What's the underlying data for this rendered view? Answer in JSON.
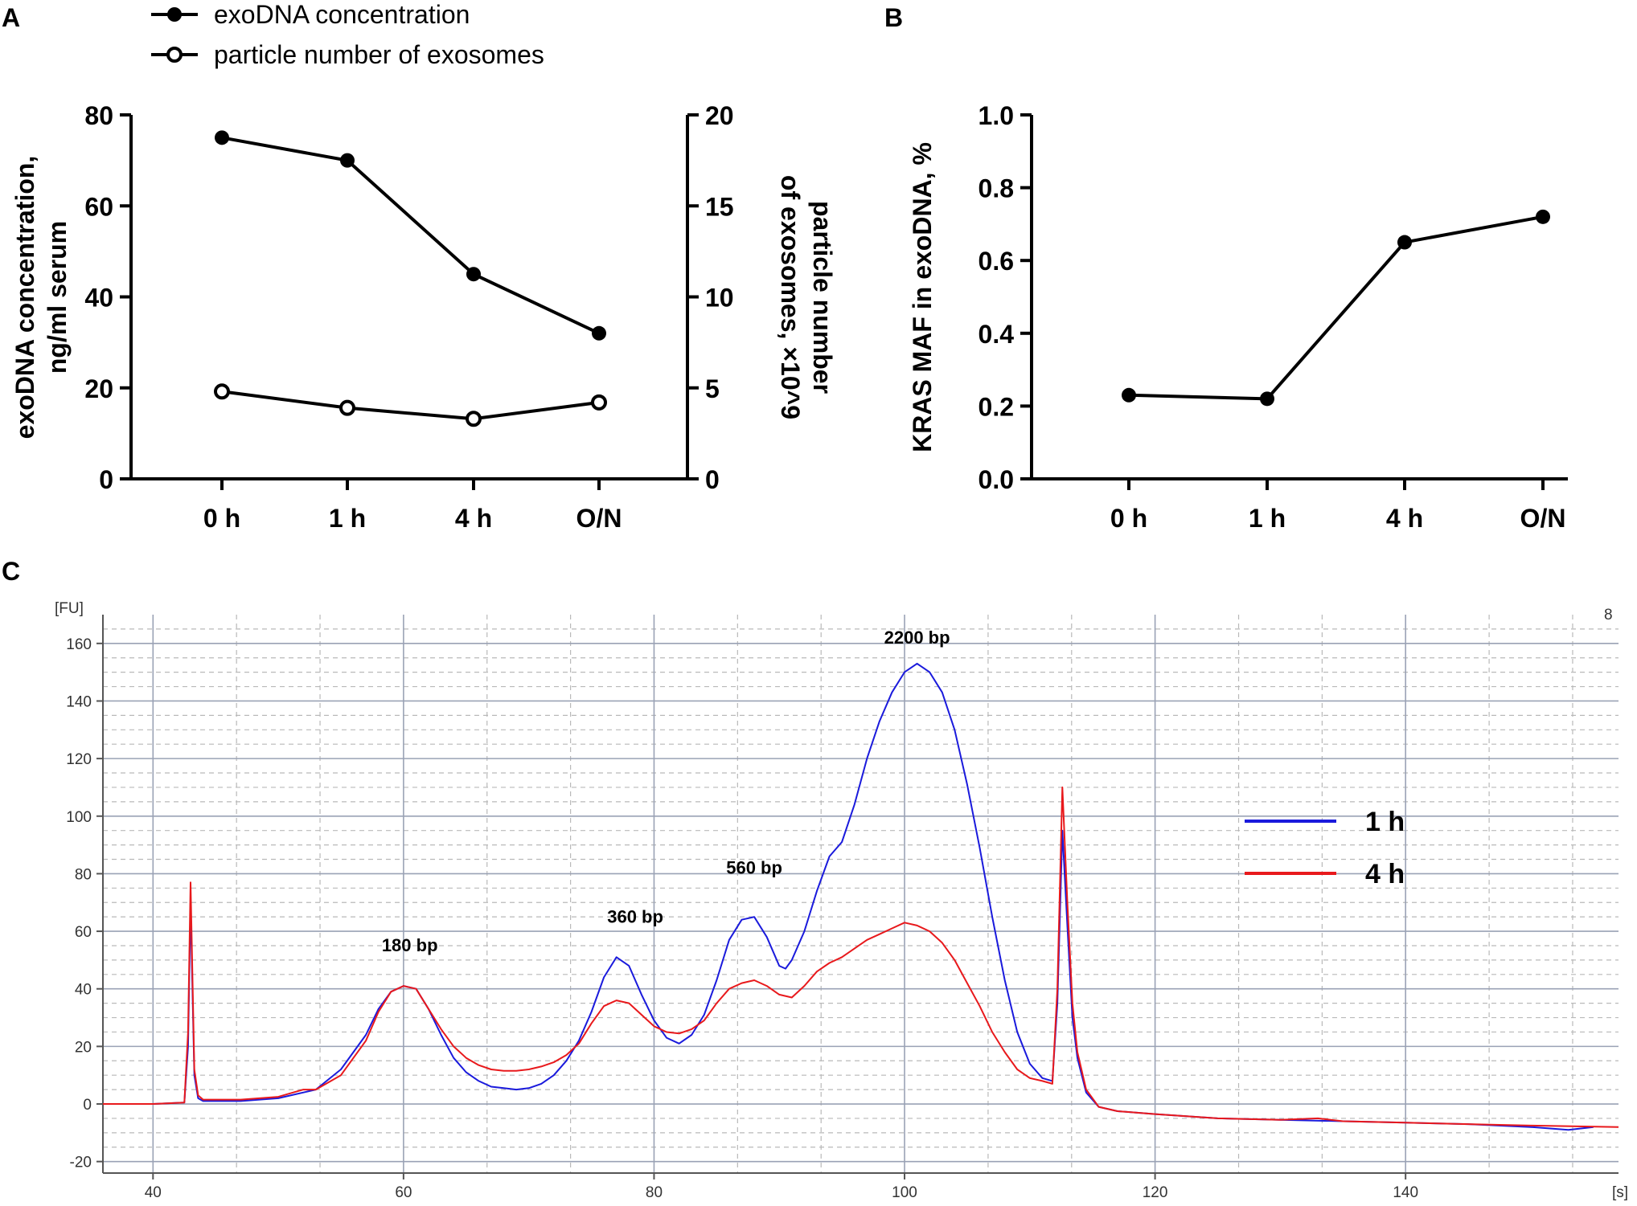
{
  "chart_data": [
    {
      "panel": "A",
      "type": "line",
      "categories": [
        "0 h",
        "1 h",
        "4 h",
        "O/N"
      ],
      "series": [
        {
          "name": "exoDNA concentration",
          "axis": "left",
          "marker": "filled-circle",
          "values": [
            75,
            70,
            45,
            32
          ]
        },
        {
          "name": "particle number of exosomes",
          "axis": "right",
          "marker": "open-circle",
          "values": [
            4.8,
            3.9,
            3.3,
            4.2
          ]
        }
      ],
      "ylabel": "exoDNA concentration, ng/ml serum",
      "ylabel_lines": [
        "exoDNA concentration,",
        "ng/ml serum"
      ],
      "ylim": [
        0,
        80
      ],
      "yticks": [
        "0",
        "20",
        "40",
        "60",
        "80"
      ],
      "y2label": "particle number of exosomes, ×10^9",
      "y2label_lines": [
        "particle number",
        "of exosomes, ×10^9"
      ],
      "y2lim": [
        0,
        20
      ],
      "y2ticks": [
        "0",
        "5",
        "10",
        "15",
        "20"
      ],
      "legend": "top-left"
    },
    {
      "panel": "B",
      "type": "line",
      "categories": [
        "0 h",
        "1 h",
        "4 h",
        "O/N"
      ],
      "series": [
        {
          "name": "KRAS MAF",
          "marker": "filled-circle",
          "values": [
            0.23,
            0.22,
            0.65,
            0.72
          ]
        }
      ],
      "ylabel": "KRAS MAF in exoDNA, %",
      "ylim": [
        0,
        1.0
      ],
      "yticks": [
        "0.0",
        "0.2",
        "0.4",
        "0.6",
        "0.8",
        "1.0"
      ]
    },
    {
      "panel": "C",
      "type": "line",
      "xlabel": "[s]",
      "ylabel": "[FU]",
      "corner_label": "8",
      "xlim": [
        36,
        157
      ],
      "ylim": [
        -24,
        170
      ],
      "xticks": [
        "40",
        "60",
        "80",
        "100",
        "120",
        "140"
      ],
      "yticks": [
        "-20",
        "0",
        "20",
        "40",
        "60",
        "80",
        "100",
        "120",
        "140",
        "160"
      ],
      "grid": true,
      "legend": "right",
      "annotations": [
        {
          "text": "180 bp",
          "x": 60.5,
          "y": 53
        },
        {
          "text": "360 bp",
          "x": 78.5,
          "y": 63
        },
        {
          "text": "560 bp",
          "x": 88,
          "y": 80
        },
        {
          "text": "2200 bp",
          "x": 101,
          "y": 160
        }
      ],
      "series": [
        {
          "name": "1 h",
          "color": "#1a1adc",
          "x": [
            36,
            40,
            42.5,
            42.8,
            43.0,
            43.3,
            43.6,
            44,
            47,
            50,
            53,
            55,
            57,
            58,
            59,
            60,
            61,
            62,
            63,
            64,
            65,
            66,
            67,
            68,
            69,
            70,
            71,
            72,
            73,
            74,
            75,
            76,
            77,
            78,
            79,
            80,
            81,
            82,
            83,
            84,
            85,
            86,
            87,
            88,
            89,
            90,
            90.5,
            91,
            92,
            93,
            94,
            95,
            96,
            97,
            98,
            99,
            100,
            101,
            102,
            103,
            104,
            105,
            106,
            107,
            108,
            109,
            110,
            111,
            111.8,
            112.2,
            112.6,
            113.0,
            113.4,
            113.8,
            114.5,
            115.5,
            117,
            120,
            125,
            130,
            135,
            140,
            145,
            150,
            153,
            155
          ],
          "y": [
            0,
            0,
            0.5,
            20,
            70,
            10,
            2,
            1,
            1,
            2,
            5,
            12,
            24,
            33,
            39,
            41,
            40,
            33,
            24,
            16,
            11,
            8,
            6,
            5.5,
            5,
            5.5,
            7,
            10,
            15,
            22,
            32,
            44,
            51,
            48,
            38,
            29,
            23,
            21,
            24,
            31,
            43,
            57,
            64,
            65,
            58,
            48,
            47,
            50,
            60,
            74,
            86,
            91,
            104,
            120,
            133,
            143,
            150,
            153,
            150,
            143,
            130,
            111,
            89,
            65,
            43,
            25,
            14,
            9,
            8,
            35,
            95,
            62,
            30,
            16,
            4,
            -1,
            -2.5,
            -3.5,
            -5,
            -5.5,
            -6,
            -6.5,
            -7,
            -8,
            -9,
            -8
          ]
        },
        {
          "name": "4 h",
          "color": "#e8191c",
          "x": [
            36,
            40,
            42.5,
            42.8,
            43.0,
            43.3,
            43.6,
            44,
            47,
            50,
            52,
            53,
            55,
            57,
            58,
            59,
            60,
            61,
            62,
            63,
            64,
            65,
            66,
            67,
            68,
            69,
            70,
            71,
            72,
            73,
            74,
            75,
            76,
            77,
            78,
            79,
            80,
            81,
            82,
            83,
            84,
            85,
            86,
            87,
            88,
            89,
            90,
            91,
            92,
            93,
            94,
            95,
            96,
            97,
            98,
            99,
            100,
            101,
            102,
            103,
            104,
            105,
            106,
            107,
            108,
            109,
            110,
            111,
            111.8,
            112.2,
            112.6,
            113.0,
            113.4,
            113.8,
            114.5,
            115.5,
            117,
            120,
            125,
            130,
            133,
            135,
            140,
            145,
            150,
            157
          ],
          "y": [
            0,
            0,
            0.5,
            25,
            77,
            12,
            3,
            1.5,
            1.5,
            2.5,
            5,
            5,
            10,
            22,
            32,
            39,
            41,
            40,
            33,
            26,
            20,
            16,
            13.5,
            12,
            11.5,
            11.5,
            12,
            13,
            14.5,
            17,
            21,
            28,
            34,
            36,
            35,
            31,
            27,
            25,
            24.5,
            26,
            29,
            35,
            40,
            42,
            43,
            41,
            38,
            37,
            41,
            46,
            49,
            51,
            54,
            57,
            59,
            61,
            63,
            62,
            60,
            56,
            50,
            42,
            34,
            25,
            18,
            12,
            9,
            8,
            7,
            40,
            110,
            70,
            35,
            18,
            5,
            -1,
            -2.5,
            -3.5,
            -5,
            -5.5,
            -5,
            -6,
            -6.5,
            -7,
            -7.5,
            -8
          ]
        }
      ]
    }
  ],
  "labels": {
    "panel_a": "A",
    "panel_b": "B",
    "panel_c": "C"
  }
}
